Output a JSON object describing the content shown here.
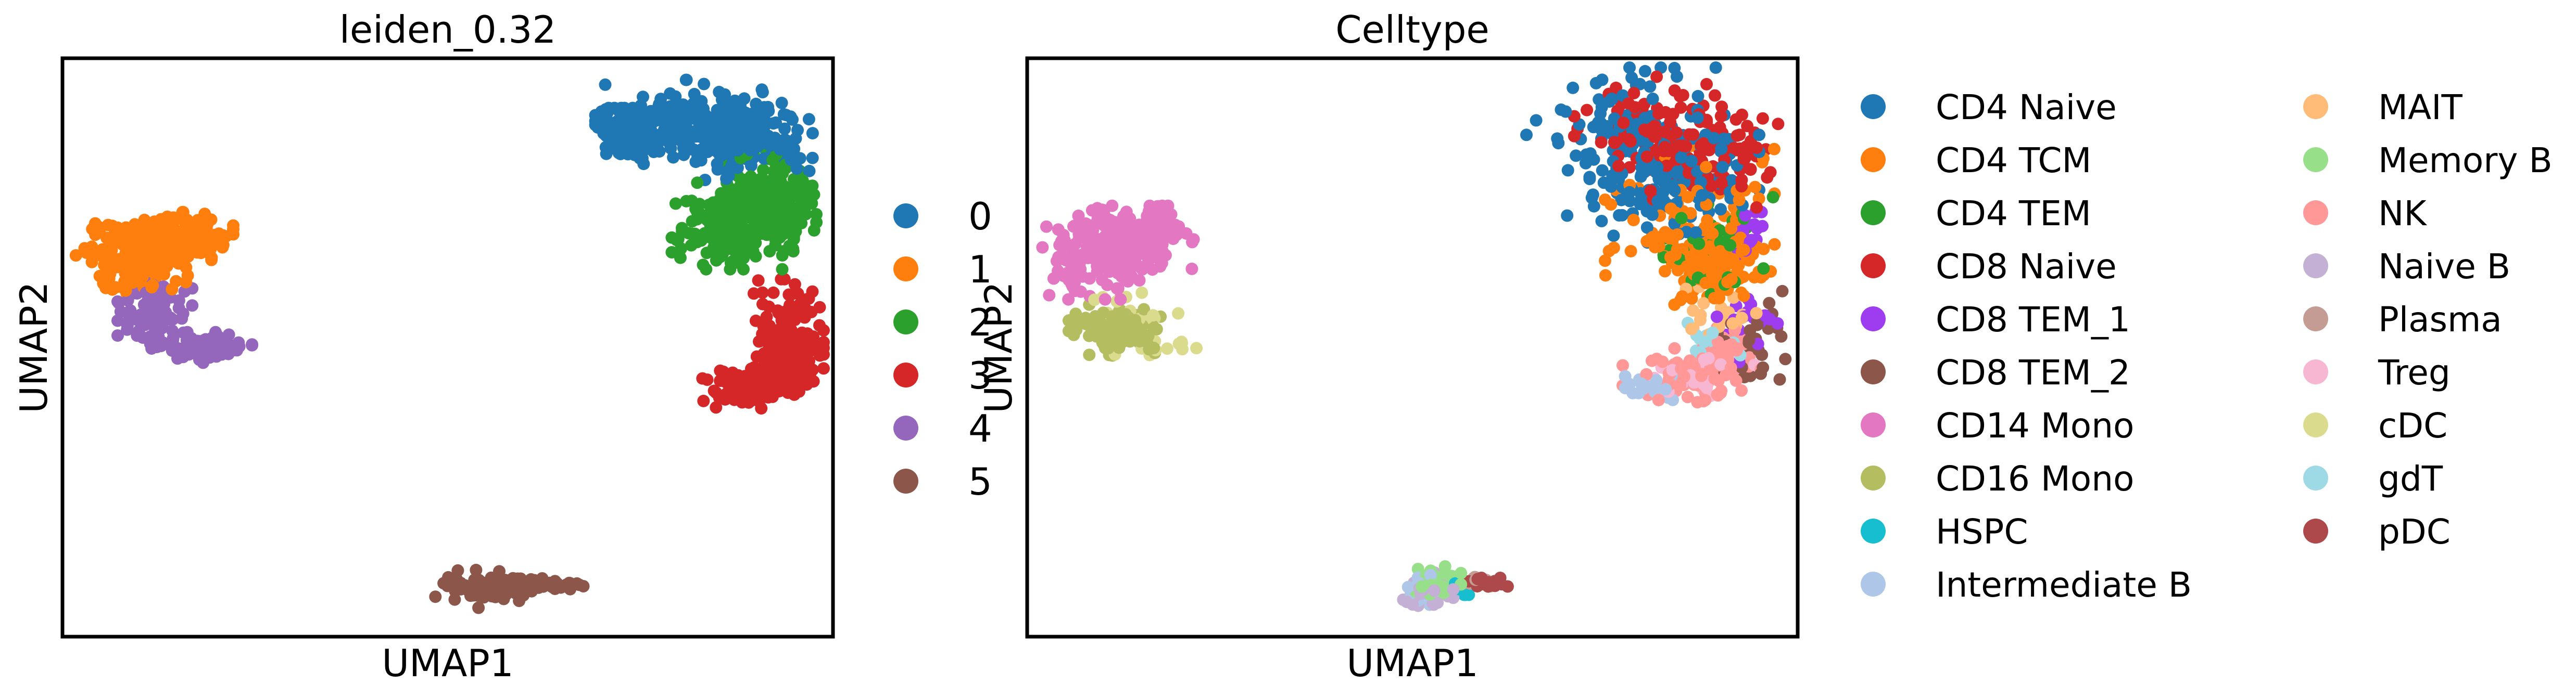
{
  "chart_data": [
    {
      "type": "scatter",
      "title": "leiden_0.32",
      "xlabel": "UMAP1",
      "ylabel": "UMAP2",
      "grid": false,
      "xlim": [
        0,
        10
      ],
      "ylim": [
        0,
        10
      ],
      "legend_position": "right",
      "series": [
        {
          "name": "0",
          "color": "#1f77b4",
          "n": 520,
          "centers": [
            [
              8.1,
              8.9,
              0.48,
              0.33
            ],
            [
              8.9,
              8.6,
              0.38,
              0.32
            ],
            [
              7.4,
              8.7,
              0.22,
              0.2
            ]
          ]
        },
        {
          "name": "1",
          "color": "#ff7f0e",
          "n": 300,
          "centers": [
            [
              0.9,
              6.6,
              0.33,
              0.3
            ],
            [
              1.6,
              6.9,
              0.28,
              0.2
            ]
          ]
        },
        {
          "name": "2",
          "color": "#2ca02c",
          "n": 420,
          "centers": [
            [
              8.7,
              7.1,
              0.36,
              0.34
            ],
            [
              9.2,
              7.5,
              0.28,
              0.38
            ]
          ]
        },
        {
          "name": "3",
          "color": "#d62728",
          "n": 300,
          "centers": [
            [
              9.4,
              5.3,
              0.22,
              0.4
            ],
            [
              8.9,
              4.3,
              0.3,
              0.16
            ],
            [
              9.5,
              4.8,
              0.2,
              0.2
            ]
          ]
        },
        {
          "name": "4",
          "color": "#9467bd",
          "n": 180,
          "centers": [
            [
              1.2,
              5.6,
              0.22,
              0.3
            ],
            [
              1.8,
              5.0,
              0.3,
              0.12
            ]
          ]
        },
        {
          "name": "5",
          "color": "#8c564b",
          "n": 150,
          "centers": [
            [
              5.5,
              0.85,
              0.3,
              0.16
            ],
            [
              6.1,
              0.9,
              0.3,
              0.05
            ]
          ]
        }
      ]
    },
    {
      "type": "scatter",
      "title": "Celltype",
      "xlabel": "UMAP1",
      "ylabel": "UMAP2",
      "grid": false,
      "xlim": [
        0,
        10
      ],
      "ylim": [
        0,
        10
      ],
      "legend_position": "right",
      "legend_columns": 2,
      "series": [
        {
          "name": "CD4 Naive",
          "color": "#1f77b4",
          "n": 230,
          "centers": [
            [
              7.8,
              8.6,
              0.6,
              0.6
            ],
            [
              8.4,
              7.9,
              0.5,
              0.5
            ]
          ]
        },
        {
          "name": "CD4 TCM",
          "color": "#ff7f0e",
          "n": 200,
          "centers": [
            [
              8.6,
              7.2,
              0.5,
              0.6
            ],
            [
              8.9,
              6.4,
              0.3,
              0.3
            ]
          ]
        },
        {
          "name": "CD4 TEM",
          "color": "#2ca02c",
          "n": 40,
          "centers": [
            [
              8.8,
              6.8,
              0.4,
              0.4
            ]
          ]
        },
        {
          "name": "CD8 Naive",
          "color": "#d62728",
          "n": 170,
          "centers": [
            [
              8.2,
              8.8,
              0.5,
              0.4
            ],
            [
              8.9,
              8.3,
              0.4,
              0.4
            ]
          ]
        },
        {
          "name": "CD8 TEM_1",
          "color": "#9e3cf0",
          "n": 40,
          "centers": [
            [
              9.3,
              6.9,
              0.12,
              0.2
            ],
            [
              9.3,
              5.4,
              0.2,
              0.3
            ]
          ]
        },
        {
          "name": "CD8 TEM_2",
          "color": "#8c564b",
          "n": 30,
          "centers": [
            [
              9.4,
              5.1,
              0.2,
              0.4
            ]
          ]
        },
        {
          "name": "CD14 Mono",
          "color": "#e377c2",
          "n": 300,
          "centers": [
            [
              0.9,
              6.6,
              0.33,
              0.35
            ],
            [
              1.5,
              6.9,
              0.3,
              0.25
            ]
          ]
        },
        {
          "name": "CD16 Mono",
          "color": "#b5bd61",
          "n": 110,
          "centers": [
            [
              1.2,
              5.3,
              0.3,
              0.2
            ]
          ]
        },
        {
          "name": "HSPC",
          "color": "#17becf",
          "n": 8,
          "centers": [
            [
              5.6,
              0.9,
              0.1,
              0.08
            ]
          ]
        },
        {
          "name": "Intermediate B",
          "color": "#aec7e8",
          "n": 40,
          "centers": [
            [
              5.2,
              0.8,
              0.15,
              0.12
            ],
            [
              8.0,
              4.3,
              0.3,
              0.1
            ]
          ]
        },
        {
          "name": "MAIT",
          "color": "#ffbb78",
          "n": 25,
          "centers": [
            [
              9.1,
              5.6,
              0.25,
              0.3
            ]
          ]
        },
        {
          "name": "Memory B",
          "color": "#98df8a",
          "n": 40,
          "centers": [
            [
              5.3,
              0.95,
              0.15,
              0.12
            ]
          ]
        },
        {
          "name": "NK",
          "color": "#ff9896",
          "n": 110,
          "centers": [
            [
              8.5,
              4.5,
              0.35,
              0.22
            ],
            [
              9.1,
              4.9,
              0.2,
              0.2
            ]
          ]
        },
        {
          "name": "Naive B",
          "color": "#c5b0d5",
          "n": 40,
          "centers": [
            [
              5.2,
              0.8,
              0.15,
              0.14
            ]
          ]
        },
        {
          "name": "Plasma",
          "color": "#c49c94",
          "n": 10,
          "centers": [
            [
              5.8,
              0.95,
              0.1,
              0.05
            ]
          ]
        },
        {
          "name": "Treg",
          "color": "#f7b6d2",
          "n": 25,
          "centers": [
            [
              8.8,
              4.6,
              0.3,
              0.2
            ]
          ]
        },
        {
          "name": "cDC",
          "color": "#dbdb8d",
          "n": 30,
          "centers": [
            [
              1.3,
              5.6,
              0.3,
              0.2
            ],
            [
              1.8,
              5.0,
              0.3,
              0.1
            ]
          ]
        },
        {
          "name": "gdT",
          "color": "#9edae5",
          "n": 15,
          "centers": [
            [
              8.9,
              5.0,
              0.2,
              0.2
            ]
          ]
        },
        {
          "name": "pDC",
          "color": "#ad494a",
          "n": 15,
          "centers": [
            [
              6.0,
              0.92,
              0.2,
              0.05
            ]
          ]
        }
      ]
    }
  ]
}
